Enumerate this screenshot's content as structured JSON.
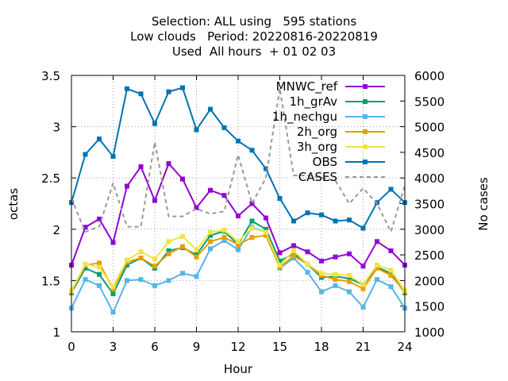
{
  "title_lines": [
    "Selection: ALL using   595 stations",
    "Low clouds   Period: 20220816-20220819",
    "Used  All hours  + 01 02 03"
  ],
  "chart_data": {
    "type": "line",
    "xlabel": "Hour",
    "ylabel": "octas",
    "y2label": "No cases",
    "xlim": [
      0,
      24
    ],
    "ylim": [
      1,
      3.5
    ],
    "y2lim": [
      1000,
      6000
    ],
    "xticks": [
      "0",
      "3",
      "6",
      "9",
      "12",
      "15",
      "18",
      "21",
      "24"
    ],
    "yticks": [
      "1",
      "1.5",
      "2",
      "2.5",
      "3",
      "3.5"
    ],
    "y2ticks": [
      "1000",
      "1500",
      "2000",
      "2500",
      "3000",
      "3500",
      "4000",
      "4500",
      "5000",
      "5500",
      "6000"
    ],
    "grid": true,
    "legend_position": "top-right",
    "x": [
      0,
      1,
      2,
      3,
      4,
      5,
      6,
      7,
      8,
      9,
      10,
      11,
      12,
      13,
      14,
      15,
      16,
      17,
      18,
      19,
      20,
      21,
      22,
      23,
      24
    ],
    "series": [
      {
        "name": "MNWC_ref",
        "color": "#9400d3",
        "marker": "square",
        "axis": "y",
        "values": [
          1.65,
          2.02,
          2.1,
          1.87,
          2.42,
          2.61,
          2.28,
          2.64,
          2.49,
          2.21,
          2.38,
          2.33,
          2.13,
          2.25,
          2.11,
          1.77,
          1.84,
          1.78,
          1.69,
          1.73,
          1.76,
          1.64,
          1.88,
          1.79,
          1.65
        ]
      },
      {
        "name": "1h_grAv",
        "color": "#009e73",
        "marker": "square",
        "axis": "y",
        "values": [
          1.38,
          1.62,
          1.56,
          1.37,
          1.65,
          1.72,
          1.62,
          1.79,
          1.82,
          1.75,
          1.94,
          1.98,
          1.85,
          2.08,
          2.0,
          1.69,
          1.76,
          1.66,
          1.53,
          1.54,
          1.52,
          1.46,
          1.63,
          1.57,
          1.38
        ]
      },
      {
        "name": "1h_nechgu",
        "color": "#56b4e9",
        "marker": "square",
        "axis": "y",
        "values": [
          1.23,
          1.51,
          1.45,
          1.19,
          1.5,
          1.51,
          1.45,
          1.5,
          1.57,
          1.54,
          1.81,
          1.89,
          1.8,
          2.02,
          1.97,
          1.62,
          1.72,
          1.58,
          1.39,
          1.45,
          1.39,
          1.24,
          1.51,
          1.44,
          1.23
        ]
      },
      {
        "name": "2h_org",
        "color": "#e69f00",
        "marker": "square",
        "axis": "y",
        "values": [
          1.39,
          1.65,
          1.67,
          1.42,
          1.68,
          1.72,
          1.64,
          1.76,
          1.83,
          1.73,
          1.88,
          1.92,
          1.85,
          1.92,
          1.94,
          1.63,
          1.74,
          1.66,
          1.55,
          1.51,
          1.49,
          1.42,
          1.62,
          1.55,
          1.39
        ]
      },
      {
        "name": "3h_org",
        "color": "#f0e442",
        "marker": "square",
        "axis": "y",
        "values": [
          1.4,
          1.66,
          1.63,
          1.44,
          1.7,
          1.78,
          1.71,
          1.88,
          1.93,
          1.8,
          1.97,
          1.99,
          1.88,
          2.01,
          1.97,
          1.65,
          1.79,
          1.66,
          1.57,
          1.56,
          1.55,
          1.46,
          1.65,
          1.6,
          1.4
        ]
      },
      {
        "name": "OBS",
        "color": "#0072b2",
        "marker": "square",
        "axis": "y",
        "values": [
          2.26,
          2.73,
          2.88,
          2.71,
          3.37,
          3.32,
          3.03,
          3.34,
          3.38,
          2.97,
          3.17,
          2.99,
          2.86,
          2.77,
          2.59,
          2.3,
          2.08,
          2.16,
          2.14,
          2.08,
          2.09,
          2.01,
          2.26,
          2.39,
          2.26
        ]
      },
      {
        "name": "CASES",
        "color": "#999999",
        "marker": "none",
        "dash": true,
        "axis": "y2",
        "values": [
          3600,
          2950,
          3050,
          3900,
          3050,
          3050,
          4700,
          3250,
          3250,
          3400,
          3300,
          3350,
          4450,
          3500,
          4000,
          5750,
          4050,
          4050,
          4000,
          3950,
          3500,
          3800,
          3500,
          2950,
          3850
        ]
      }
    ]
  }
}
